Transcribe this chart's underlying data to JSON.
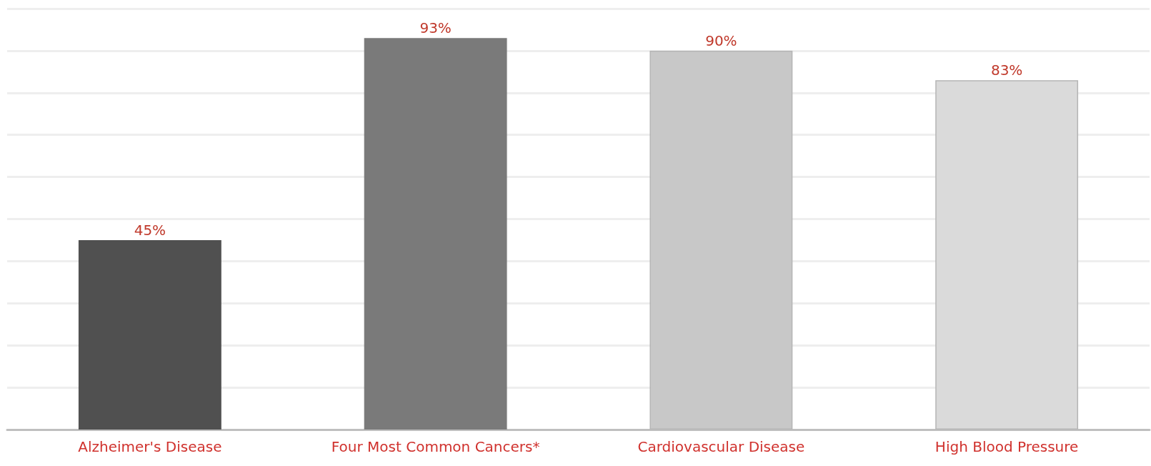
{
  "chart_data": {
    "type": "bar",
    "categories": [
      "Alzheimer's Disease",
      "Four Most Common Cancers*",
      "Cardiovascular Disease",
      "High Blood Pressure"
    ],
    "values": [
      45,
      93,
      90,
      83
    ],
    "colors": [
      "#505050",
      "#7a7a7a",
      "#c8c8c8",
      "#dadada"
    ],
    "value_labels": [
      "45%",
      "93%",
      "90%",
      "83%"
    ],
    "ylim": [
      0,
      100
    ],
    "yticks": [
      {
        "value": 0,
        "label": null
      },
      {
        "value": 10,
        "label": null
      },
      {
        "value": 20,
        "label": null
      },
      {
        "value": 30,
        "label": null
      },
      {
        "value": 40,
        "label": null
      },
      {
        "value": 50,
        "label": null
      },
      {
        "value": 60,
        "label": null
      },
      {
        "value": 70,
        "label": null
      },
      {
        "value": 80,
        "label": null
      },
      {
        "value": 90,
        "label": null
      },
      {
        "value": 100,
        "label": null
      }
    ],
    "grid": "y",
    "tick_labels": "x"
  }
}
